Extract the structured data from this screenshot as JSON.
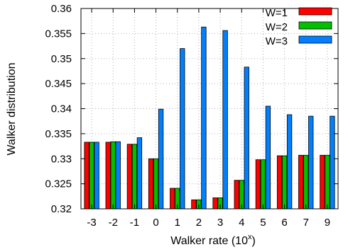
{
  "chart_data": {
    "type": "bar",
    "categories": [
      "-3",
      "-2",
      "-1",
      "0",
      "1",
      "2",
      "3",
      "4",
      "5",
      "6",
      "7",
      "9"
    ],
    "series": [
      {
        "name": "W=1",
        "color": "#ff0000",
        "values": [
          0.3333,
          0.3333,
          0.3329,
          0.33,
          0.3241,
          0.3218,
          0.3222,
          0.3257,
          0.3298,
          0.3306,
          0.3307,
          0.3307
        ]
      },
      {
        "name": "W=2",
        "color": "#00c000",
        "values": [
          0.3333,
          0.3334,
          0.3329,
          0.33,
          0.3241,
          0.3218,
          0.3222,
          0.3257,
          0.3298,
          0.3306,
          0.3307,
          0.3307
        ]
      },
      {
        "name": "W=3",
        "color": "#0080ff",
        "values": [
          0.3333,
          0.3334,
          0.3342,
          0.3399,
          0.352,
          0.3563,
          0.3556,
          0.3483,
          0.3405,
          0.3388,
          0.3385,
          0.3385
        ]
      }
    ],
    "xlabel": "Walker rate (10",
    "xlabel_sup": "x",
    "xlabel_close": ")",
    "ylabel": "Walker distribution",
    "ylim": [
      0.32,
      0.36
    ],
    "yticks": [
      0.32,
      0.325,
      0.33,
      0.335,
      0.34,
      0.345,
      0.35,
      0.355,
      0.36
    ],
    "ytick_labels": [
      "0.32",
      "0.325",
      "0.33",
      "0.335",
      "0.34",
      "0.345",
      "0.35",
      "0.355",
      "0.36"
    ],
    "grid": true,
    "legend_position": "top-right"
  }
}
